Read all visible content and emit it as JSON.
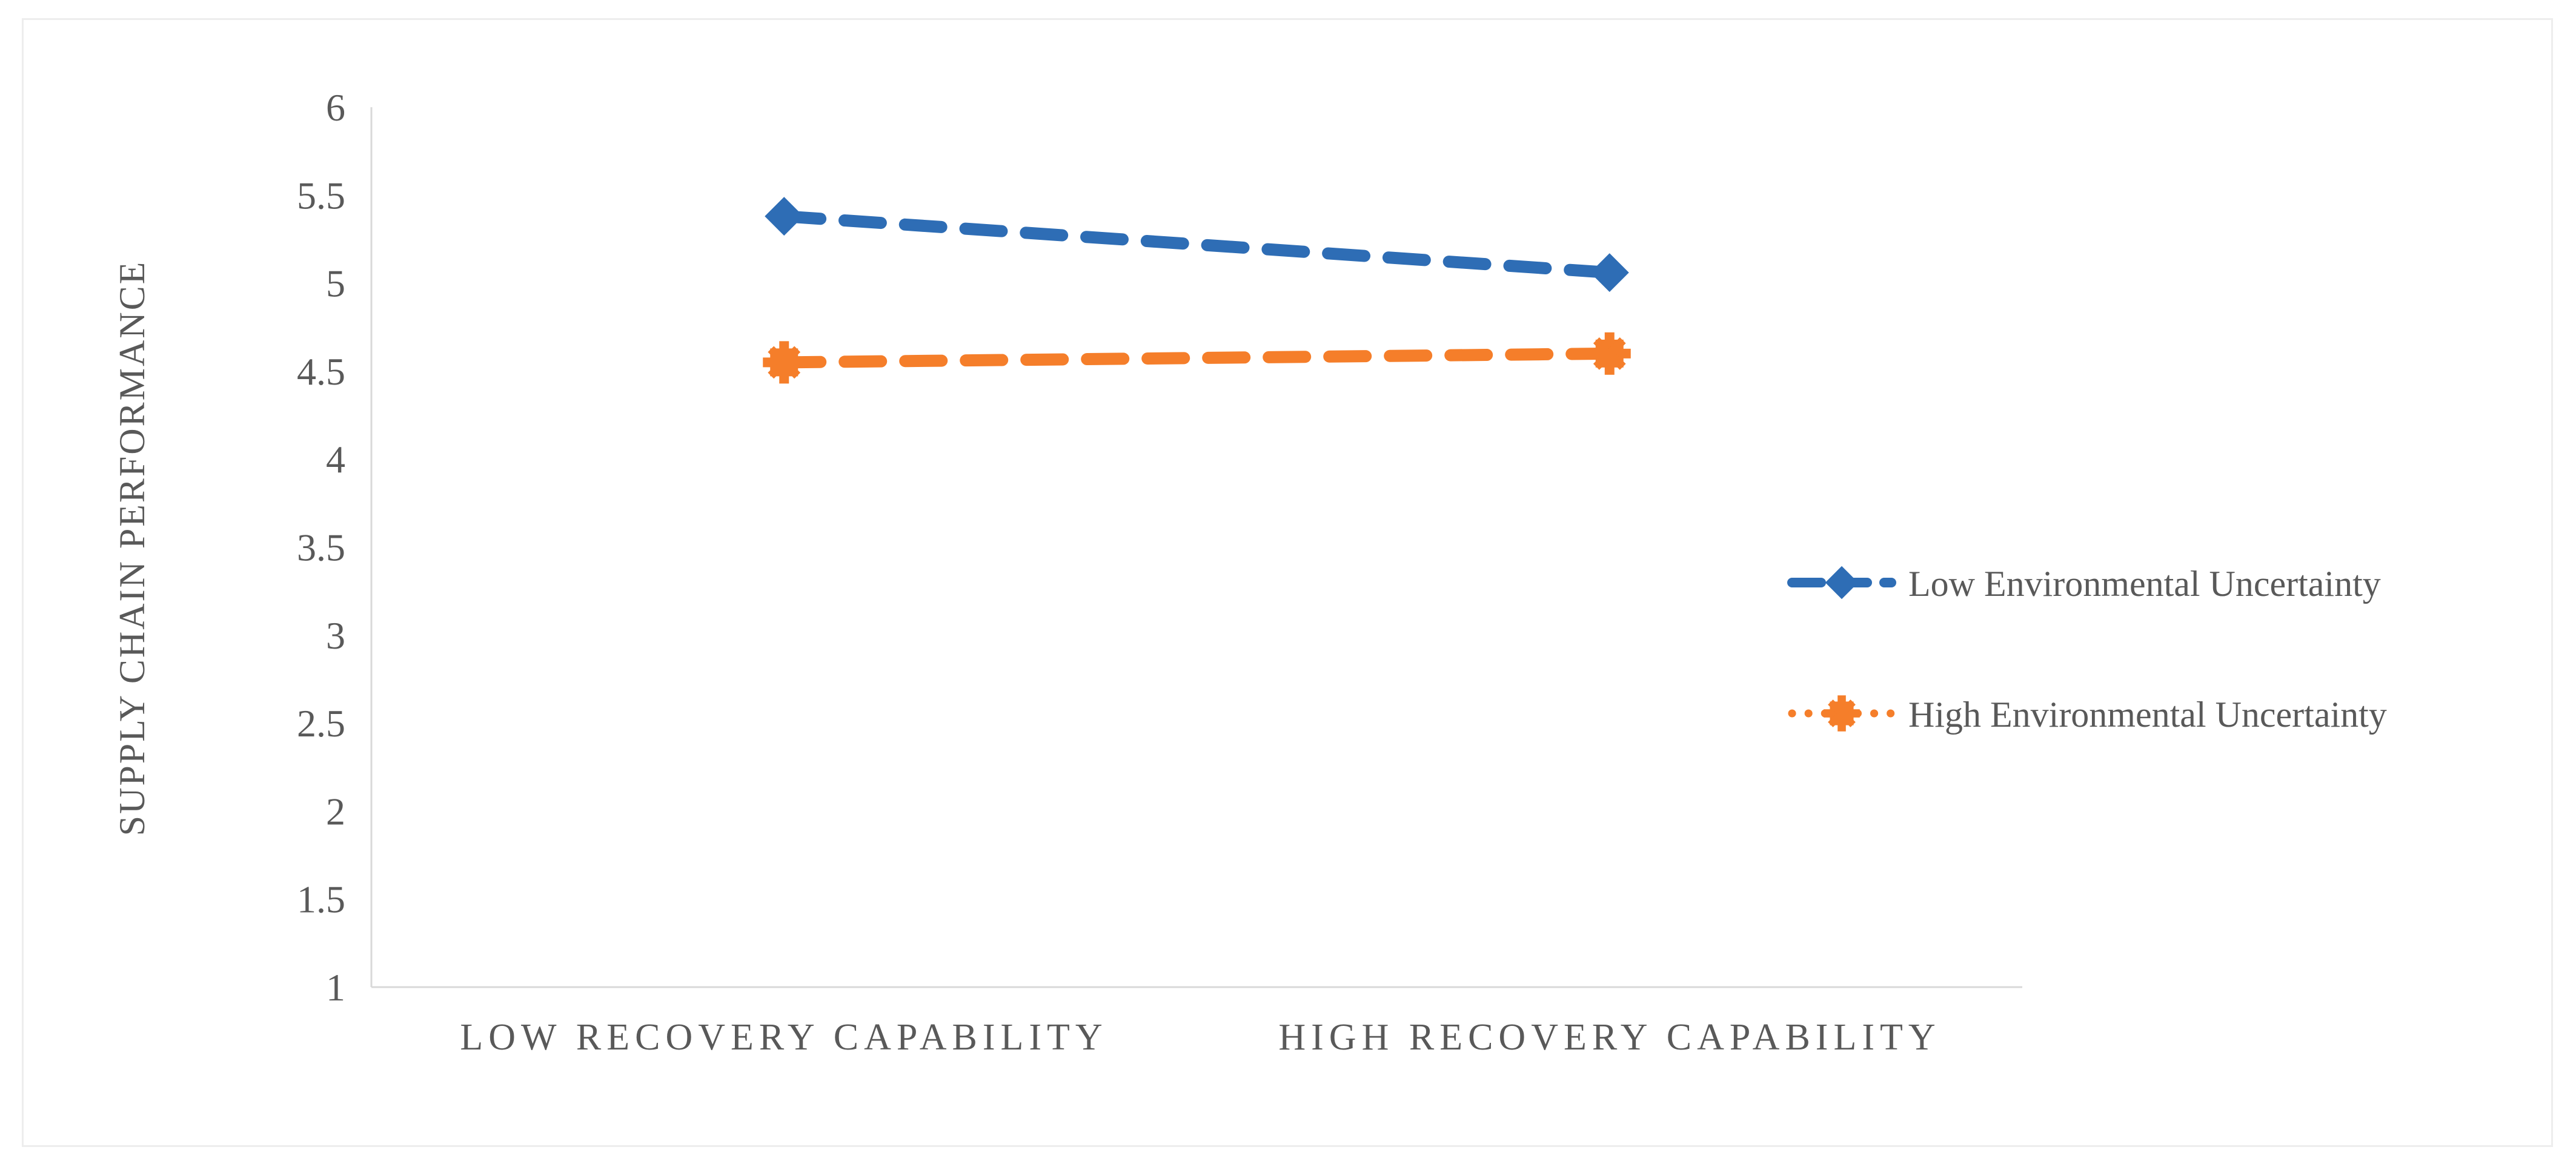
{
  "figure": {
    "background": "#ffffff",
    "border_color": "#ededed"
  },
  "chart_data": {
    "type": "line",
    "title": "",
    "xlabel": "",
    "ylabel": "SUPPLY CHAIN PERFORMANCE",
    "categories": [
      "LOW RECOVERY CAPABILITY",
      "HIGH RECOVERY CAPABILITY"
    ],
    "series": [
      {
        "name": "Low Environmental Uncertainty",
        "values": [
          5.38,
          5.06
        ],
        "color": "#2E6DB5",
        "line_style": "dashed",
        "legend_line_style": "dashed",
        "marker": "diamond"
      },
      {
        "name": "High Environmental Uncertainty",
        "values": [
          4.55,
          4.6
        ],
        "color": "#F57E2A",
        "line_style": "dashed",
        "legend_line_style": "dotted",
        "marker": "x-square"
      }
    ],
    "ylim": [
      1,
      6
    ],
    "yticks": [
      6,
      5.5,
      5,
      4.5,
      4,
      3.5,
      3,
      2.5,
      2,
      1.5,
      1
    ],
    "grid": false,
    "legend_position": "right",
    "axis_color": "#D9D9D9",
    "text_color": "#595959"
  }
}
